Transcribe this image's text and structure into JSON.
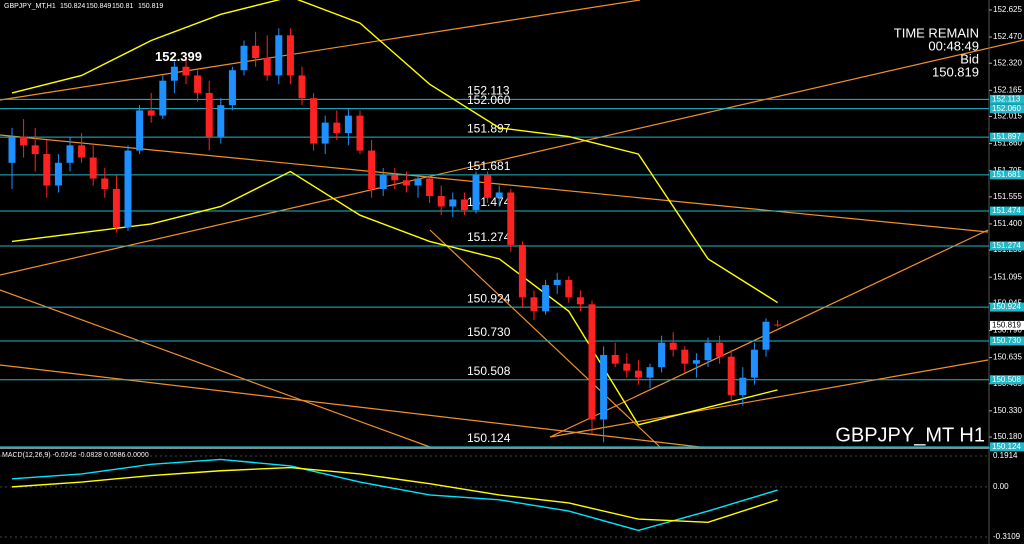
{
  "chart_data": {
    "type": "candlestick",
    "symbol": "GBPJPY_MT,H1",
    "time_remain_title": "TIME REMAIN",
    "time_remain": "00:48:49",
    "bid_label": "Bid",
    "watermark": "GBPJPY_MT H1",
    "peak_label": 152.399,
    "ylim": [
      150.123,
      152.682
    ],
    "yticks": [
      152.625,
      {
        "value": 152.47,
        "label": "152.470"
      },
      {
        "value": 152.32,
        "label": "152.320"
      },
      152.165,
      152.015,
      {
        "value": 151.86,
        "label": "151.860"
      },
      151.705,
      151.555,
      {
        "value": 151.4,
        "label": "151.400"
      },
      {
        "value": 151.25,
        "label": "151.250"
      },
      151.095,
      150.945,
      {
        "value": 150.79,
        "label": "150.790"
      },
      150.635,
      150.485,
      {
        "value": 150.33,
        "label": "150.330"
      },
      {
        "value": 150.18,
        "label": "150.180"
      }
    ],
    "up_color": "#1e90ff",
    "down_color": "#ff2222",
    "candles": [
      [
        151.75,
        151.95,
        151.6,
        151.9
      ],
      [
        151.9,
        152.0,
        151.78,
        151.85
      ],
      [
        151.85,
        151.95,
        151.7,
        151.8
      ],
      [
        151.8,
        151.88,
        151.55,
        151.62
      ],
      [
        151.62,
        151.8,
        151.58,
        151.75
      ],
      [
        151.75,
        151.9,
        151.7,
        151.85
      ],
      [
        151.85,
        151.92,
        151.75,
        151.78
      ],
      [
        151.78,
        151.85,
        151.62,
        151.66
      ],
      [
        151.66,
        151.72,
        151.55,
        151.6
      ],
      [
        151.6,
        151.68,
        151.35,
        151.38
      ],
      [
        151.38,
        151.85,
        151.36,
        151.82
      ],
      [
        151.82,
        152.08,
        151.8,
        152.05
      ],
      [
        152.05,
        152.15,
        151.98,
        152.02
      ],
      [
        152.02,
        152.25,
        152.0,
        152.22
      ],
      [
        152.22,
        152.33,
        152.15,
        152.3
      ],
      [
        152.3,
        152.34,
        152.2,
        152.25
      ],
      [
        152.25,
        152.28,
        152.1,
        152.15
      ],
      [
        152.15,
        152.22,
        151.82,
        151.9
      ],
      [
        151.9,
        152.12,
        151.86,
        152.08
      ],
      [
        152.08,
        152.3,
        152.05,
        152.28
      ],
      [
        152.28,
        152.45,
        152.25,
        152.42
      ],
      [
        152.42,
        152.5,
        152.3,
        152.35
      ],
      [
        152.35,
        152.48,
        152.22,
        152.25
      ],
      [
        152.25,
        152.52,
        152.2,
        152.48
      ],
      [
        152.48,
        152.52,
        152.2,
        152.25
      ],
      [
        152.25,
        152.3,
        152.08,
        152.12
      ],
      [
        152.12,
        152.15,
        151.82,
        151.86
      ],
      [
        151.86,
        152.02,
        151.8,
        151.98
      ],
      [
        151.98,
        152.05,
        151.88,
        151.92
      ],
      [
        151.92,
        152.06,
        151.85,
        152.02
      ],
      [
        152.02,
        152.05,
        151.8,
        151.82
      ],
      [
        151.82,
        151.88,
        151.55,
        151.6
      ],
      [
        151.6,
        151.72,
        151.56,
        151.68
      ],
      [
        151.68,
        151.72,
        151.6,
        151.65
      ],
      [
        151.65,
        151.7,
        151.58,
        151.62
      ],
      [
        151.62,
        151.68,
        151.55,
        151.66
      ],
      [
        151.66,
        151.68,
        151.52,
        151.56
      ],
      [
        151.56,
        151.62,
        151.45,
        151.5
      ],
      [
        151.5,
        151.58,
        151.44,
        151.54
      ],
      [
        151.54,
        151.58,
        151.45,
        151.48
      ],
      [
        151.48,
        151.7,
        151.46,
        151.68
      ],
      [
        151.68,
        151.7,
        151.52,
        151.55
      ],
      [
        151.55,
        151.62,
        151.5,
        151.58
      ],
      [
        151.58,
        151.6,
        151.24,
        151.28
      ],
      [
        151.28,
        151.3,
        150.92,
        150.98
      ],
      [
        150.98,
        151.02,
        150.85,
        150.9
      ],
      [
        150.9,
        151.08,
        150.88,
        151.05
      ],
      [
        151.05,
        151.12,
        151.0,
        151.08
      ],
      [
        151.08,
        151.1,
        150.95,
        150.98
      ],
      [
        150.98,
        151.02,
        150.9,
        150.94
      ],
      [
        150.94,
        150.96,
        150.2,
        150.28
      ],
      [
        150.28,
        150.7,
        150.15,
        150.65
      ],
      [
        150.65,
        150.72,
        150.58,
        150.6
      ],
      [
        150.6,
        150.66,
        150.52,
        150.56
      ],
      [
        150.56,
        150.62,
        150.48,
        150.52
      ],
      [
        150.52,
        150.6,
        150.46,
        150.58
      ],
      [
        150.58,
        150.76,
        150.55,
        150.72
      ],
      [
        150.72,
        150.78,
        150.64,
        150.68
      ],
      [
        150.68,
        150.7,
        150.55,
        150.6
      ],
      [
        150.6,
        150.66,
        150.52,
        150.62
      ],
      [
        150.62,
        150.75,
        150.58,
        150.72
      ],
      [
        150.72,
        150.76,
        150.6,
        150.64
      ],
      [
        150.64,
        150.68,
        150.38,
        150.42
      ],
      [
        150.42,
        150.58,
        150.36,
        150.52
      ],
      [
        150.52,
        150.72,
        150.48,
        150.68
      ],
      [
        150.68,
        150.86,
        150.64,
        150.84
      ],
      [
        150.824,
        150.849,
        150.81,
        150.819
      ]
    ],
    "levels": [
      152.113,
      {
        "value": 152.06,
        "label": "152.060"
      },
      151.897,
      151.681,
      151.474,
      151.274,
      150.924,
      {
        "value": 150.73,
        "label": "150.730"
      },
      150.508,
      150.124
    ],
    "level_color": "#22b8c8",
    "bands": {
      "x": [
        0,
        6,
        12,
        18,
        24,
        30,
        36,
        42,
        48,
        54,
        60,
        66
      ],
      "series": [
        {
          "color": "#ffff00",
          "values": [
            152.15,
            152.25,
            152.45,
            152.6,
            152.7,
            152.55,
            152.2,
            151.95,
            151.9,
            151.8,
            151.2,
            150.95
          ]
        },
        {
          "color": "#ffff00",
          "values": [
            151.3,
            151.35,
            151.4,
            151.5,
            151.7,
            151.45,
            151.3,
            151.2,
            150.9,
            150.25,
            150.35,
            150.45
          ]
        }
      ]
    },
    "macd": {
      "title": "MACD(12,26,9) -0.0242 -0.0828 0.0586 0.0000",
      "ylim": [
        -0.3544,
        0.2287
      ],
      "yticks": [
        0.1914,
        {
          "value": 0,
          "label": "0.00"
        },
        -0.3109
      ],
      "x": [
        0,
        6,
        12,
        18,
        24,
        30,
        36,
        42,
        48,
        54,
        60,
        66
      ],
      "series": [
        {
          "color": "#00e5ff",
          "values": [
            0.05,
            0.08,
            0.14,
            0.17,
            0.13,
            0.03,
            -0.05,
            -0.08,
            -0.15,
            -0.27,
            -0.15,
            -0.02
          ]
        },
        {
          "color": "#ffff00",
          "values": [
            0.0,
            0.03,
            0.07,
            0.1,
            0.12,
            0.08,
            0.02,
            -0.05,
            -0.1,
            -0.2,
            -0.22,
            -0.08
          ]
        }
      ]
    }
  }
}
